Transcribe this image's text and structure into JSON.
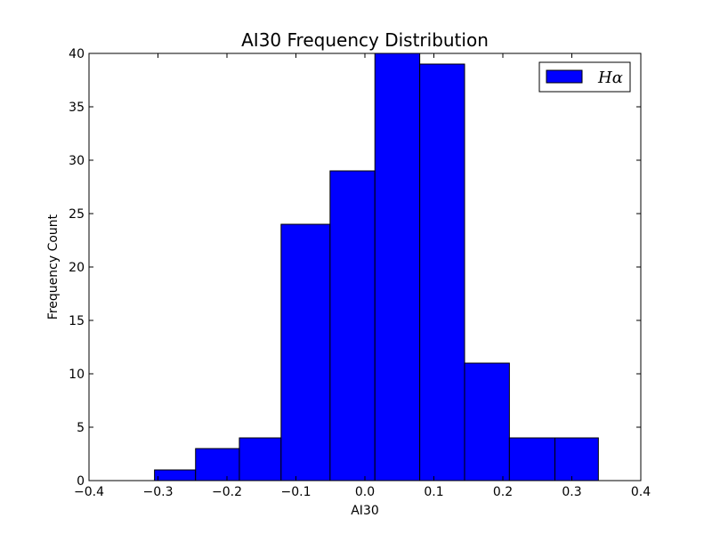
{
  "chart_data": {
    "type": "bar",
    "title": "AI30 Frequency Distribution",
    "xlabel": "AI30",
    "ylabel": "Frequency Count",
    "xlim": [
      -0.4,
      0.4
    ],
    "ylim": [
      0,
      40
    ],
    "xticks": [
      "−0.4",
      "−0.3",
      "−0.2",
      "−0.1",
      "0.0",
      "0.1",
      "0.2",
      "0.3",
      "0.4"
    ],
    "xtick_values": [
      -0.4,
      -0.3,
      -0.2,
      -0.1,
      0.0,
      0.1,
      0.2,
      0.3,
      0.4
    ],
    "yticks": [
      "0",
      "5",
      "10",
      "15",
      "20",
      "25",
      "30",
      "35",
      "40"
    ],
    "ytick_values": [
      0,
      5,
      10,
      15,
      20,
      25,
      30,
      35,
      40
    ],
    "bin_edges": [
      -0.305,
      -0.2455,
      -0.182,
      -0.1215,
      -0.0505,
      0.0145,
      0.0795,
      0.1445,
      0.2095,
      0.2755,
      0.3385
    ],
    "values": [
      1,
      3,
      4,
      24,
      29,
      40,
      39,
      11,
      4,
      4
    ],
    "series": [
      {
        "name": "Hα",
        "color": "#0000ff"
      }
    ],
    "legend_position": "top-right",
    "grid": false
  }
}
